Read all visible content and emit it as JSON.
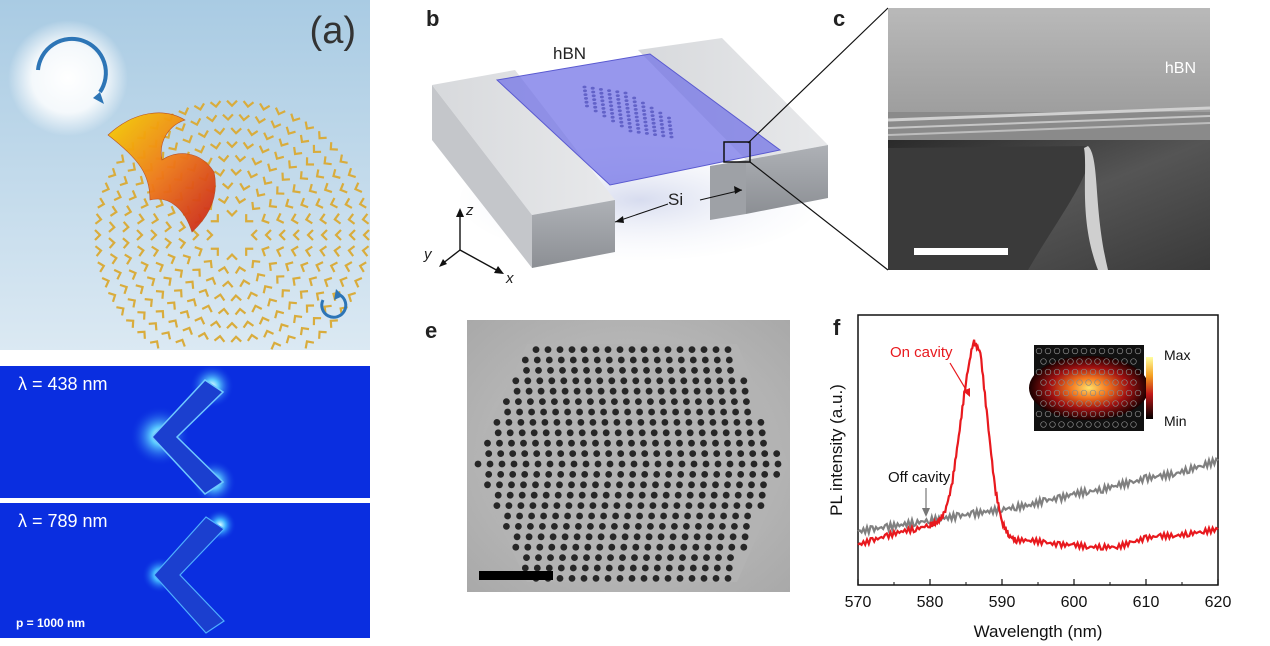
{
  "panel_a": {
    "label": "(a)",
    "sim_top_wavelength": "λ = 438 nm",
    "sim_bottom_wavelength": "λ = 789 nm",
    "sim_bottom_period": "p = 1000 nm"
  },
  "panel_b": {
    "label": "b",
    "material_top": "hBN",
    "material_substrate": "Si",
    "axis_z": "z",
    "axis_y": "y",
    "axis_x": "x"
  },
  "panel_c": {
    "label": "c",
    "material": "hBN"
  },
  "panel_e": {
    "label": "e"
  },
  "panel_f": {
    "label": "f",
    "annotation_on": "On cavity",
    "annotation_off": "Off cavity",
    "colorbar_max": "Max",
    "colorbar_min": "Min"
  },
  "chart_data": {
    "type": "line",
    "xlabel": "Wavelength (nm)",
    "ylabel": "PL intensity (a.u.)",
    "xlim": [
      570,
      620
    ],
    "x_ticks": [
      "570",
      "580",
      "590",
      "600",
      "610",
      "620"
    ],
    "y_ticks_labeled": false,
    "series": [
      {
        "name": "On cavity",
        "color": "#e8191e",
        "x": [
          570,
          572,
          574,
          576,
          578,
          580,
          581,
          582,
          583,
          584,
          585,
          586,
          587,
          588,
          589,
          590,
          591,
          592,
          594,
          596,
          598,
          600,
          602,
          604,
          606,
          608,
          610,
          612,
          614,
          616,
          618,
          620
        ],
        "y": [
          0.06,
          0.08,
          0.1,
          0.12,
          0.13,
          0.15,
          0.16,
          0.2,
          0.32,
          0.55,
          0.8,
          0.98,
          0.93,
          0.62,
          0.32,
          0.16,
          0.1,
          0.08,
          0.08,
          0.07,
          0.06,
          0.06,
          0.05,
          0.05,
          0.05,
          0.07,
          0.09,
          0.1,
          0.1,
          0.11,
          0.12,
          0.13
        ]
      },
      {
        "name": "Off cavity",
        "color": "#808080",
        "x": [
          570,
          572,
          574,
          576,
          578,
          580,
          582,
          584,
          586,
          588,
          590,
          592,
          594,
          596,
          598,
          600,
          602,
          604,
          606,
          608,
          610,
          612,
          614,
          616,
          618,
          620
        ],
        "y": [
          0.12,
          0.13,
          0.14,
          0.15,
          0.16,
          0.17,
          0.18,
          0.19,
          0.2,
          0.21,
          0.22,
          0.23,
          0.24,
          0.26,
          0.27,
          0.29,
          0.3,
          0.31,
          0.33,
          0.34,
          0.36,
          0.37,
          0.38,
          0.4,
          0.42,
          0.44
        ]
      }
    ]
  },
  "colors": {
    "hbn_purple": "#6f6fe6",
    "si_gray": "#c9cbcf",
    "sim_blue": "#0a2ee0",
    "nanoantenna_gold": "#d9ac3c"
  }
}
